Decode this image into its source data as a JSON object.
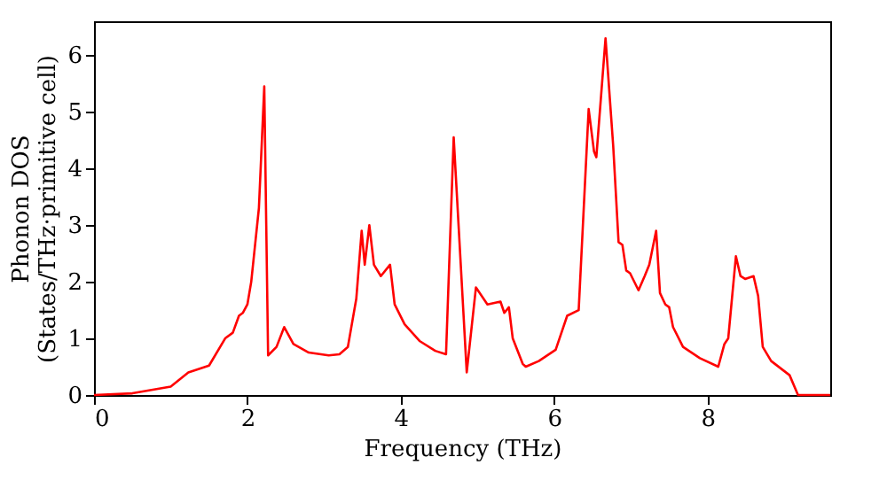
{
  "chart_data": {
    "type": "line",
    "xlabel": "Frequency (THz)",
    "ylabel": "Phonon DOS\n(States/THz·primitive cell)",
    "xlim": [
      0,
      9.6
    ],
    "xticks": [
      0,
      2,
      4,
      6,
      8
    ],
    "ylim": [
      0,
      6.6
    ],
    "yticks": [
      0,
      1,
      2,
      3,
      4,
      5,
      6
    ],
    "grid": false,
    "marker": "none",
    "line_style": "solid",
    "x": [
      0,
      0.5,
      1.0,
      1.23,
      1.5,
      1.71,
      1.81,
      1.89,
      1.94,
      2.0,
      2.05,
      2.15,
      2.22,
      2.27,
      2.38,
      2.48,
      2.6,
      2.8,
      3.06,
      3.2,
      3.31,
      3.42,
      3.49,
      3.53,
      3.59,
      3.65,
      3.74,
      3.86,
      3.92,
      4.05,
      4.25,
      4.45,
      4.59,
      4.69,
      4.86,
      4.98,
      5.13,
      5.3,
      5.35,
      5.41,
      5.46,
      5.59,
      5.63,
      5.8,
      6.02,
      6.17,
      6.32,
      6.45,
      6.52,
      6.55,
      6.67,
      6.77,
      6.84,
      6.89,
      6.94,
      6.99,
      7.1,
      7.18,
      7.24,
      7.33,
      7.38,
      7.45,
      7.5,
      7.55,
      7.68,
      7.9,
      8.14,
      8.22,
      8.27,
      8.37,
      8.43,
      8.49,
      8.6,
      8.66,
      8.72,
      8.83,
      9.07,
      9.18,
      9.6
    ],
    "series": [
      {
        "color": "#ff0000",
        "values": [
          0,
          0.03,
          0.15,
          0.4,
          0.52,
          1.0,
          1.1,
          1.4,
          1.45,
          1.6,
          2.0,
          3.3,
          5.45,
          0.7,
          0.85,
          1.2,
          0.9,
          0.75,
          0.7,
          0.72,
          0.85,
          1.7,
          2.9,
          2.3,
          3.0,
          2.3,
          2.1,
          2.3,
          1.6,
          1.25,
          0.95,
          0.78,
          0.72,
          4.55,
          0.4,
          1.9,
          1.6,
          1.65,
          1.45,
          1.55,
          1.0,
          0.55,
          0.5,
          0.6,
          0.8,
          1.4,
          1.5,
          5.05,
          4.3,
          4.2,
          6.3,
          4.4,
          2.7,
          2.65,
          2.2,
          2.15,
          1.85,
          2.1,
          2.3,
          2.9,
          1.8,
          1.6,
          1.55,
          1.2,
          0.85,
          0.65,
          0.5,
          0.9,
          1.0,
          2.45,
          2.1,
          2.05,
          2.1,
          1.75,
          0.85,
          0.6,
          0.35,
          0.0,
          0.0
        ]
      }
    ]
  }
}
